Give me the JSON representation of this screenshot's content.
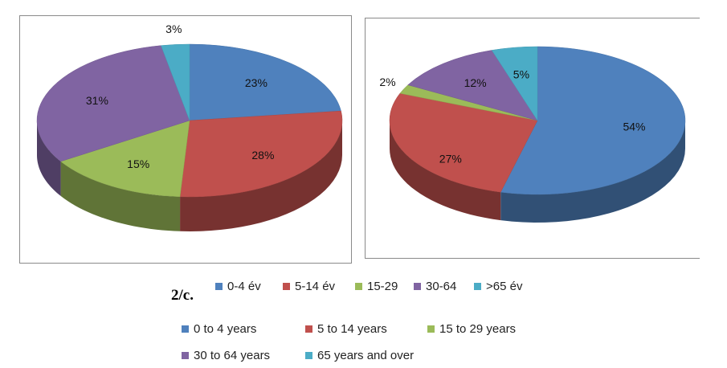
{
  "figure_label": "2/c.",
  "colors": {
    "blue": "#4f81bd",
    "red": "#c0504d",
    "green": "#9bbb59",
    "purple": "#8064a2",
    "cyan": "#4bacc6"
  },
  "chart_data": [
    {
      "type": "pie",
      "three_d": true,
      "categories": [
        "0-4 év",
        "5-14 év",
        "15-29",
        "30-64",
        ">65 év"
      ],
      "values": [
        23,
        28,
        15,
        31,
        3
      ],
      "labels": [
        "23%",
        "28%",
        "15%",
        "31%",
        "3%"
      ]
    },
    {
      "type": "pie",
      "three_d": true,
      "categories": [
        "0-4 év",
        "5-14 év",
        "15-29",
        "30-64",
        ">65 év"
      ],
      "values": [
        54,
        27,
        2,
        12,
        5
      ],
      "labels": [
        "54%",
        "27%",
        "2%",
        "12%",
        "5%"
      ]
    }
  ],
  "legend_hu": [
    "0-4 év",
    "5-14 év",
    "15-29",
    "30-64",
    ">65 év"
  ],
  "legend_en": [
    "0 to 4 years",
    "5 to 14 years",
    "15 to 29 years",
    "30 to 64 years",
    "65 years and over"
  ]
}
